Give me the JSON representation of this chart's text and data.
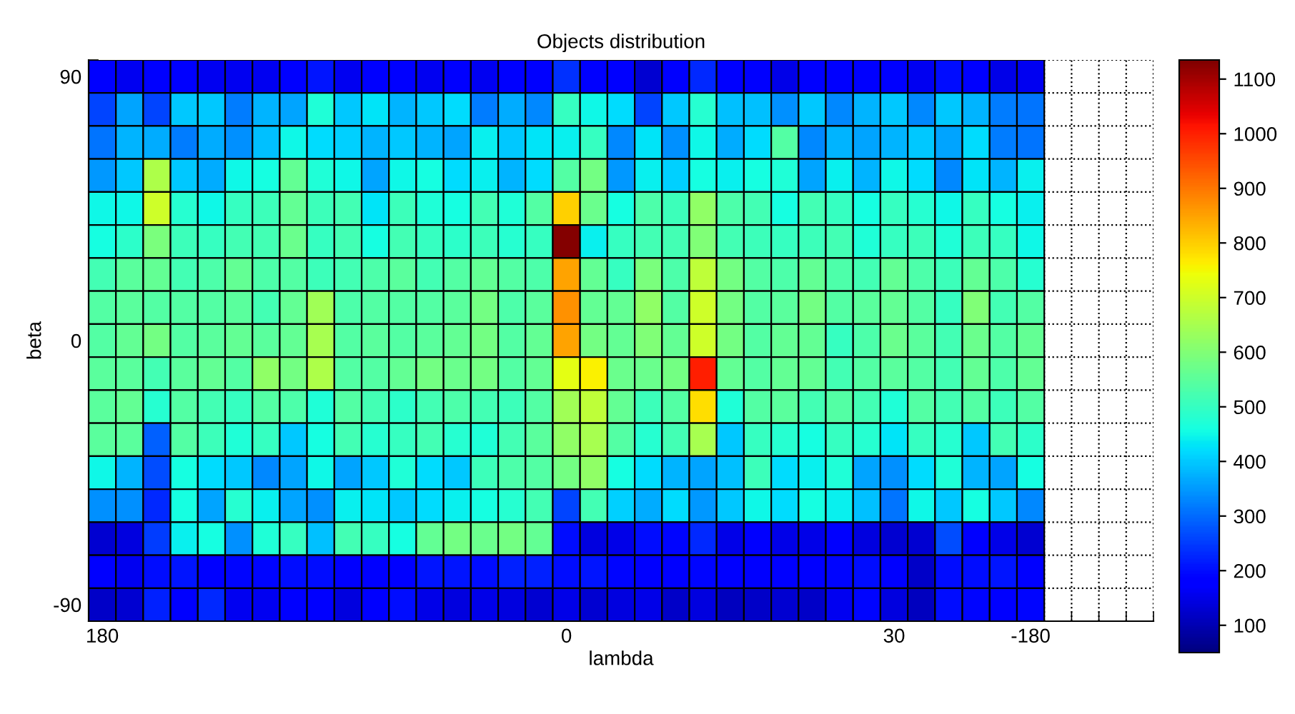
{
  "chart_data": {
    "type": "heatmap",
    "title": "Objects distribution",
    "xlabel": "lambda",
    "ylabel": "beta",
    "categories": [
      "180",
      null,
      null,
      null,
      null,
      null,
      null,
      null,
      null,
      null,
      null,
      null,
      null,
      null,
      null,
      null,
      null,
      "0",
      null,
      null,
      null,
      null,
      null,
      null,
      null,
      null,
      null,
      null,
      null,
      "30",
      null,
      null,
      null,
      null,
      "-180"
    ],
    "y_categories": [
      "90",
      null,
      null,
      null,
      null,
      null,
      null,
      null,
      "0",
      null,
      null,
      null,
      null,
      null,
      null,
      null,
      "-90"
    ],
    "grid": true,
    "clim": [
      50,
      1135
    ],
    "cticks": [
      100,
      200,
      300,
      400,
      500,
      600,
      700,
      800,
      900,
      1000,
      1100
    ],
    "cells": [
      [
        170,
        160,
        170,
        170,
        160,
        160,
        160,
        170,
        210,
        160,
        170,
        175,
        160,
        170,
        160,
        170,
        170,
        240,
        180,
        170,
        130,
        170,
        230,
        180,
        170,
        150,
        180,
        170,
        170,
        170,
        160,
        200,
        180,
        150,
        160
      ],
      [
        260,
        360,
        260,
        400,
        400,
        320,
        380,
        360,
        470,
        400,
        430,
        380,
        400,
        420,
        320,
        370,
        330,
        500,
        450,
        420,
        260,
        400,
        480,
        390,
        390,
        340,
        400,
        330,
        380,
        400,
        330,
        400,
        380,
        320,
        310
      ],
      [
        310,
        380,
        370,
        320,
        370,
        340,
        390,
        450,
        420,
        410,
        380,
        400,
        380,
        360,
        440,
        400,
        430,
        440,
        500,
        330,
        430,
        340,
        450,
        370,
        420,
        540,
        330,
        380,
        360,
        380,
        400,
        360,
        420,
        320,
        310
      ],
      [
        350,
        400,
        660,
        400,
        370,
        450,
        460,
        560,
        470,
        450,
        360,
        450,
        460,
        420,
        440,
        380,
        420,
        540,
        580,
        350,
        440,
        410,
        460,
        440,
        460,
        470,
        360,
        440,
        380,
        450,
        420,
        330,
        430,
        380,
        440
      ],
      [
        450,
        450,
        700,
        480,
        450,
        500,
        510,
        560,
        510,
        520,
        430,
        510,
        470,
        460,
        520,
        470,
        540,
        800,
        570,
        460,
        530,
        510,
        620,
        530,
        520,
        460,
        520,
        500,
        460,
        500,
        480,
        450,
        500,
        460,
        440
      ],
      [
        460,
        490,
        590,
        510,
        500,
        520,
        520,
        570,
        500,
        520,
        460,
        520,
        500,
        490,
        510,
        480,
        500,
        1130,
        440,
        500,
        520,
        520,
        600,
        520,
        510,
        500,
        510,
        520,
        470,
        500,
        510,
        470,
        510,
        500,
        450
      ],
      [
        520,
        550,
        560,
        520,
        530,
        560,
        530,
        540,
        510,
        520,
        530,
        550,
        520,
        540,
        560,
        540,
        530,
        850,
        560,
        500,
        590,
        530,
        680,
        580,
        540,
        530,
        560,
        530,
        520,
        560,
        530,
        510,
        560,
        530,
        480
      ],
      [
        540,
        550,
        540,
        540,
        540,
        550,
        520,
        560,
        640,
        530,
        540,
        540,
        540,
        550,
        580,
        530,
        550,
        870,
        560,
        560,
        620,
        540,
        700,
        580,
        540,
        550,
        580,
        540,
        550,
        560,
        540,
        500,
        600,
        520,
        540
      ],
      [
        540,
        560,
        580,
        540,
        550,
        560,
        550,
        560,
        650,
        540,
        550,
        540,
        550,
        560,
        580,
        540,
        560,
        850,
        580,
        560,
        600,
        560,
        700,
        580,
        540,
        560,
        560,
        500,
        530,
        570,
        550,
        520,
        570,
        540,
        560
      ],
      [
        550,
        550,
        520,
        550,
        560,
        540,
        620,
        580,
        660,
        540,
        540,
        560,
        580,
        570,
        580,
        540,
        560,
        730,
        760,
        570,
        570,
        580,
        1000,
        560,
        540,
        560,
        560,
        520,
        540,
        550,
        540,
        520,
        560,
        530,
        560
      ],
      [
        550,
        560,
        480,
        540,
        520,
        500,
        540,
        530,
        470,
        540,
        520,
        490,
        520,
        530,
        520,
        510,
        540,
        640,
        680,
        560,
        510,
        540,
        780,
        470,
        540,
        550,
        520,
        540,
        520,
        470,
        540,
        520,
        540,
        510,
        540
      ],
      [
        550,
        550,
        290,
        540,
        510,
        470,
        500,
        400,
        460,
        520,
        480,
        500,
        520,
        480,
        470,
        520,
        550,
        620,
        650,
        540,
        480,
        520,
        650,
        400,
        500,
        480,
        460,
        500,
        480,
        430,
        500,
        480,
        400,
        520,
        490
      ],
      [
        450,
        380,
        270,
        460,
        420,
        400,
        330,
        360,
        450,
        360,
        400,
        470,
        420,
        400,
        510,
        530,
        540,
        580,
        620,
        460,
        420,
        380,
        360,
        390,
        510,
        420,
        440,
        470,
        360,
        340,
        420,
        470,
        380,
        360,
        460
      ],
      [
        340,
        340,
        230,
        460,
        360,
        480,
        440,
        360,
        340,
        440,
        430,
        400,
        420,
        440,
        460,
        480,
        520,
        260,
        520,
        410,
        370,
        420,
        350,
        400,
        450,
        420,
        460,
        440,
        390,
        310,
        450,
        400,
        460,
        400,
        330
      ],
      [
        130,
        140,
        250,
        440,
        460,
        340,
        470,
        500,
        390,
        520,
        500,
        460,
        560,
        580,
        570,
        580,
        560,
        200,
        140,
        150,
        200,
        190,
        230,
        150,
        180,
        150,
        150,
        170,
        140,
        130,
        130,
        270,
        170,
        150,
        130
      ],
      [
        170,
        160,
        200,
        210,
        170,
        190,
        190,
        200,
        200,
        170,
        180,
        170,
        210,
        210,
        200,
        220,
        220,
        200,
        210,
        190,
        170,
        180,
        190,
        180,
        170,
        180,
        180,
        190,
        200,
        170,
        120,
        200,
        200,
        210,
        170
      ],
      [
        120,
        130,
        220,
        170,
        230,
        160,
        160,
        170,
        170,
        140,
        170,
        200,
        150,
        140,
        150,
        140,
        130,
        150,
        130,
        140,
        150,
        120,
        140,
        110,
        120,
        130,
        120,
        160,
        190,
        140,
        110,
        200,
        190,
        180,
        190
      ]
    ]
  }
}
